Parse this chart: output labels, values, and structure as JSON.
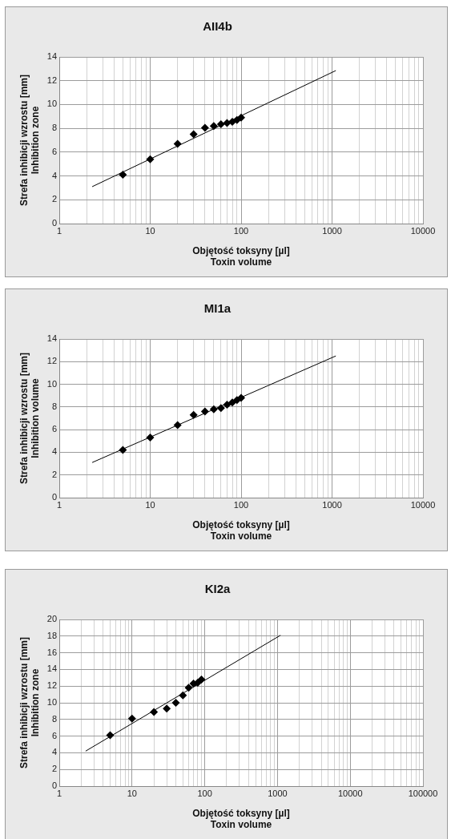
{
  "chart_data": [
    {
      "type": "scatter",
      "title": "AII4b",
      "xlabel": "Objętość toksyny [µl]\nToxin volume",
      "ylabel": "Strefa inhibicji wzrostu [mm]\nInhibition zone",
      "log": "x",
      "grid": true,
      "legend": false,
      "xlim": [
        1,
        10000
      ],
      "ylim": [
        0,
        14
      ],
      "yticks": [
        0,
        2,
        4,
        6,
        8,
        10,
        12,
        14
      ],
      "xticks": [
        1,
        {
          "value": 2,
          "label": null
        },
        {
          "value": 3,
          "label": null
        },
        {
          "value": 4,
          "label": null
        },
        {
          "value": 5,
          "label": null
        },
        {
          "value": 6,
          "label": null
        },
        {
          "value": 7,
          "label": null
        },
        {
          "value": 8,
          "label": null
        },
        {
          "value": 9,
          "label": null
        },
        10,
        {
          "value": 20,
          "label": null
        },
        {
          "value": 30,
          "label": null
        },
        {
          "value": 40,
          "label": null
        },
        {
          "value": 50,
          "label": null
        },
        {
          "value": 60,
          "label": null
        },
        {
          "value": 70,
          "label": null
        },
        {
          "value": 80,
          "label": null
        },
        {
          "value": 90,
          "label": null
        },
        100,
        {
          "value": 200,
          "label": null
        },
        {
          "value": 300,
          "label": null
        },
        {
          "value": 400,
          "label": null
        },
        {
          "value": 500,
          "label": null
        },
        {
          "value": 600,
          "label": null
        },
        {
          "value": 700,
          "label": null
        },
        {
          "value": 800,
          "label": null
        },
        {
          "value": 900,
          "label": null
        },
        1000,
        {
          "value": 2000,
          "label": null
        },
        {
          "value": 3000,
          "label": null
        },
        {
          "value": 4000,
          "label": null
        },
        {
          "value": 5000,
          "label": null
        },
        {
          "value": 6000,
          "label": null
        },
        {
          "value": 7000,
          "label": null
        },
        {
          "value": 8000,
          "label": null
        },
        {
          "value": 9000,
          "label": null
        },
        10000
      ],
      "series": [
        {
          "type": "scatter",
          "color": "#000000",
          "marker": "diamond",
          "x": [
            5,
            10,
            20,
            30,
            40,
            50,
            60,
            70,
            80,
            90,
            100
          ],
          "values": [
            4.1,
            5.4,
            6.7,
            7.5,
            8.05,
            8.2,
            8.35,
            8.45,
            8.55,
            8.7,
            8.9
          ]
        },
        {
          "type": "line",
          "color": "#000000",
          "marker": "none",
          "x": [
            2.3,
            1100
          ],
          "values": [
            3.1,
            12.85
          ]
        }
      ]
    },
    {
      "type": "scatter",
      "title": "MI1a",
      "xlabel": "Objętość toksyny [µl]\nToxin volume",
      "ylabel": "Strefa inhibicji wzrostu [mm]\nInhibition volume",
      "log": "x",
      "grid": true,
      "legend": false,
      "xlim": [
        1,
        10000
      ],
      "ylim": [
        0,
        14
      ],
      "yticks": [
        0,
        2,
        4,
        6,
        8,
        10,
        12,
        14
      ],
      "xticks": [
        1,
        {
          "value": 2,
          "label": null
        },
        {
          "value": 3,
          "label": null
        },
        {
          "value": 4,
          "label": null
        },
        {
          "value": 5,
          "label": null
        },
        {
          "value": 6,
          "label": null
        },
        {
          "value": 7,
          "label": null
        },
        {
          "value": 8,
          "label": null
        },
        {
          "value": 9,
          "label": null
        },
        10,
        {
          "value": 20,
          "label": null
        },
        {
          "value": 30,
          "label": null
        },
        {
          "value": 40,
          "label": null
        },
        {
          "value": 50,
          "label": null
        },
        {
          "value": 60,
          "label": null
        },
        {
          "value": 70,
          "label": null
        },
        {
          "value": 80,
          "label": null
        },
        {
          "value": 90,
          "label": null
        },
        100,
        {
          "value": 200,
          "label": null
        },
        {
          "value": 300,
          "label": null
        },
        {
          "value": 400,
          "label": null
        },
        {
          "value": 500,
          "label": null
        },
        {
          "value": 600,
          "label": null
        },
        {
          "value": 700,
          "label": null
        },
        {
          "value": 800,
          "label": null
        },
        {
          "value": 900,
          "label": null
        },
        1000,
        {
          "value": 2000,
          "label": null
        },
        {
          "value": 3000,
          "label": null
        },
        {
          "value": 4000,
          "label": null
        },
        {
          "value": 5000,
          "label": null
        },
        {
          "value": 6000,
          "label": null
        },
        {
          "value": 7000,
          "label": null
        },
        {
          "value": 8000,
          "label": null
        },
        {
          "value": 9000,
          "label": null
        },
        10000
      ],
      "series": [
        {
          "type": "scatter",
          "color": "#000000",
          "marker": "diamond",
          "x": [
            5,
            10,
            20,
            30,
            40,
            50,
            60,
            70,
            80,
            90,
            100
          ],
          "values": [
            4.2,
            5.3,
            6.4,
            7.3,
            7.6,
            7.8,
            7.9,
            8.2,
            8.4,
            8.6,
            8.8
          ]
        },
        {
          "type": "line",
          "color": "#000000",
          "marker": "none",
          "x": [
            2.3,
            1100
          ],
          "values": [
            3.1,
            12.5
          ]
        }
      ]
    },
    {
      "type": "scatter",
      "title": "KI2a",
      "xlabel": "Objętość toksyny [µl]\nToxin volume",
      "ylabel": "Strefa inhibicji wzrostu [mm]\nInhibition zone",
      "log": "x",
      "grid": true,
      "legend": false,
      "xlim": [
        1,
        100000
      ],
      "ylim": [
        0,
        20
      ],
      "yticks": [
        0,
        2,
        4,
        6,
        8,
        10,
        12,
        14,
        16,
        18,
        20
      ],
      "xticks": [
        1,
        {
          "value": 2,
          "label": null
        },
        {
          "value": 3,
          "label": null
        },
        {
          "value": 4,
          "label": null
        },
        {
          "value": 5,
          "label": null
        },
        {
          "value": 6,
          "label": null
        },
        {
          "value": 7,
          "label": null
        },
        {
          "value": 8,
          "label": null
        },
        {
          "value": 9,
          "label": null
        },
        10,
        {
          "value": 20,
          "label": null
        },
        {
          "value": 30,
          "label": null
        },
        {
          "value": 40,
          "label": null
        },
        {
          "value": 50,
          "label": null
        },
        {
          "value": 60,
          "label": null
        },
        {
          "value": 70,
          "label": null
        },
        {
          "value": 80,
          "label": null
        },
        {
          "value": 90,
          "label": null
        },
        100,
        {
          "value": 200,
          "label": null
        },
        {
          "value": 300,
          "label": null
        },
        {
          "value": 400,
          "label": null
        },
        {
          "value": 500,
          "label": null
        },
        {
          "value": 600,
          "label": null
        },
        {
          "value": 700,
          "label": null
        },
        {
          "value": 800,
          "label": null
        },
        {
          "value": 900,
          "label": null
        },
        1000,
        {
          "value": 2000,
          "label": null
        },
        {
          "value": 3000,
          "label": null
        },
        {
          "value": 4000,
          "label": null
        },
        {
          "value": 5000,
          "label": null
        },
        {
          "value": 6000,
          "label": null
        },
        {
          "value": 7000,
          "label": null
        },
        {
          "value": 8000,
          "label": null
        },
        {
          "value": 9000,
          "label": null
        },
        10000,
        {
          "value": 20000,
          "label": null
        },
        {
          "value": 30000,
          "label": null
        },
        {
          "value": 40000,
          "label": null
        },
        {
          "value": 50000,
          "label": null
        },
        {
          "value": 60000,
          "label": null
        },
        {
          "value": 70000,
          "label": null
        },
        {
          "value": 80000,
          "label": null
        },
        {
          "value": 90000,
          "label": null
        },
        100000
      ],
      "series": [
        {
          "type": "scatter",
          "color": "#000000",
          "marker": "diamond",
          "x": [
            5,
            10,
            20,
            30,
            40,
            50,
            60,
            70,
            80,
            90
          ],
          "values": [
            6.1,
            8.1,
            8.9,
            9.3,
            10.0,
            10.9,
            11.8,
            12.3,
            12.4,
            12.8
          ]
        },
        {
          "type": "line",
          "color": "#000000",
          "marker": "none",
          "x": [
            2.3,
            1100
          ],
          "values": [
            4.2,
            18.1
          ]
        }
      ]
    }
  ]
}
